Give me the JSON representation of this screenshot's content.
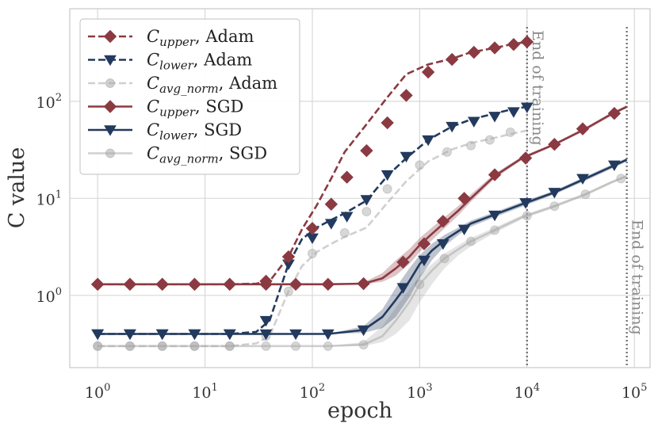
{
  "chart_data": {
    "type": "line",
    "title": "",
    "xlabel": "epoch",
    "ylabel": "C value",
    "xscale": "log",
    "yscale": "log",
    "xlim": [
      0.55,
      140000
    ],
    "ylim": [
      0.18,
      900
    ],
    "x_ticks": [
      1,
      10,
      100,
      1000,
      10000,
      100000
    ],
    "x_tick_labels": [
      {
        "base": "10",
        "exp": "0"
      },
      {
        "base": "10",
        "exp": "1"
      },
      {
        "base": "10",
        "exp": "2"
      },
      {
        "base": "10",
        "exp": "3"
      },
      {
        "base": "10",
        "exp": "4"
      },
      {
        "base": "10",
        "exp": "5"
      }
    ],
    "y_ticks": [
      1,
      10,
      100
    ],
    "y_tick_labels": [
      {
        "base": "10",
        "exp": "0"
      },
      {
        "base": "10",
        "exp": "1"
      },
      {
        "base": "10",
        "exp": "2"
      }
    ],
    "grid": true,
    "legend_position": "top-left",
    "series": [
      {
        "name": "C_upper, Adam",
        "sub": "upper",
        "optimizer": "Adam",
        "color": "#8b3a42",
        "dash": "dashed",
        "marker": "diamond",
        "x": [
          1,
          2,
          4,
          8,
          17,
          30,
          40,
          60,
          80,
          110,
          150,
          200,
          320,
          500,
          750,
          1200,
          2000,
          3000,
          5000,
          7000,
          10000
        ],
        "y": [
          1.3,
          1.3,
          1.3,
          1.3,
          1.3,
          1.32,
          1.4,
          2.5,
          4.8,
          8.5,
          16,
          30,
          58,
          110,
          190,
          240,
          275,
          320,
          355,
          385,
          410
        ],
        "marker_x": [
          1,
          2,
          4,
          8,
          17,
          37,
          60,
          100,
          150,
          210,
          320,
          500,
          750,
          1200,
          2000,
          3200,
          5000,
          7500,
          10000
        ],
        "marker_y": [
          1.3,
          1.3,
          1.3,
          1.3,
          1.3,
          1.4,
          2.5,
          4.9,
          8.7,
          16.5,
          31,
          60,
          115,
          200,
          270,
          320,
          355,
          385,
          410
        ]
      },
      {
        "name": "C_lower, Adam",
        "sub": "lower",
        "optimizer": "Adam",
        "color": "#233a5e",
        "dash": "dashed",
        "marker": "triangle-down",
        "x": [
          1,
          2,
          4,
          8,
          17,
          30,
          40,
          60,
          80,
          110,
          150,
          200,
          320,
          500,
          750,
          1200,
          2000,
          3000,
          5000,
          7000,
          10000
        ],
        "y": [
          0.4,
          0.4,
          0.4,
          0.4,
          0.4,
          0.42,
          0.55,
          2.1,
          3.8,
          5.0,
          6.0,
          7.0,
          9.5,
          17,
          26,
          40,
          55,
          65,
          75,
          82,
          88
        ],
        "marker_x": [
          1,
          2,
          4,
          8,
          17,
          37,
          60,
          100,
          150,
          210,
          320,
          500,
          750,
          1200,
          2000,
          3200,
          5000,
          7500,
          10000
        ],
        "marker_y": [
          0.4,
          0.4,
          0.4,
          0.4,
          0.4,
          0.55,
          2.1,
          3.9,
          5.5,
          6.5,
          9.7,
          17.5,
          27,
          40,
          55,
          62,
          70,
          78,
          87
        ]
      },
      {
        "name": "C_avg_norm, Adam",
        "sub": "avg_norm",
        "optimizer": "Adam",
        "color": "#aaaaaa",
        "dash": "dashed",
        "marker": "circle",
        "x": [
          1,
          2,
          4,
          8,
          17,
          30,
          40,
          60,
          80,
          110,
          150,
          200,
          320,
          500,
          750,
          1200,
          2000,
          3000,
          5000,
          7000,
          10000
        ],
        "y": [
          0.3,
          0.3,
          0.3,
          0.3,
          0.3,
          0.32,
          0.38,
          1.1,
          2.0,
          2.8,
          3.4,
          4.0,
          5.0,
          9.0,
          15,
          24,
          32,
          37,
          42,
          46,
          50
        ],
        "marker_x": [
          1,
          2,
          4,
          8,
          17,
          37,
          60,
          100,
          200,
          320,
          500,
          1000,
          1800,
          3000,
          4500,
          7000
        ],
        "marker_y": [
          0.3,
          0.3,
          0.3,
          0.3,
          0.3,
          0.38,
          1.1,
          2.7,
          4.4,
          7.3,
          12.5,
          22,
          30,
          35,
          40,
          48
        ]
      },
      {
        "name": "C_upper, SGD",
        "sub": "upper",
        "optimizer": "SGD",
        "color": "#8b3a42",
        "dash": "solid",
        "marker": "diamond",
        "x": [
          1,
          2,
          4,
          8,
          17,
          37,
          70,
          140,
          300,
          450,
          600,
          800,
          1000,
          1300,
          1700,
          2300,
          3000,
          5000,
          9000,
          18000,
          35000,
          60000,
          85000
        ],
        "y": [
          1.3,
          1.3,
          1.3,
          1.3,
          1.3,
          1.3,
          1.3,
          1.3,
          1.32,
          1.5,
          1.9,
          2.5,
          3.3,
          4.3,
          5.6,
          7.5,
          10,
          17,
          26,
          36,
          52,
          73,
          88
        ],
        "band_lower": [
          1.3,
          1.3,
          1.3,
          1.3,
          1.3,
          1.3,
          1.3,
          1.3,
          1.3,
          1.38,
          1.6,
          2.1,
          2.8,
          3.7,
          4.9,
          6.7,
          9.2,
          16,
          25,
          35,
          50,
          70,
          85
        ],
        "band_upper": [
          1.3,
          1.3,
          1.3,
          1.3,
          1.3,
          1.3,
          1.3,
          1.3,
          1.36,
          1.7,
          2.3,
          3.0,
          3.9,
          5.0,
          6.4,
          8.4,
          11,
          18,
          27,
          37,
          54,
          76,
          91
        ],
        "marker_x": [
          1,
          2,
          4,
          8,
          17,
          37,
          70,
          140,
          300,
          700,
          1100,
          1650,
          2600,
          5000,
          9700,
          18000,
          33000,
          65000
        ],
        "marker_y": [
          1.3,
          1.3,
          1.3,
          1.3,
          1.3,
          1.3,
          1.3,
          1.3,
          1.32,
          2.2,
          3.4,
          5.8,
          10,
          17.5,
          26,
          36,
          52,
          75
        ]
      },
      {
        "name": "C_lower, SGD",
        "sub": "lower",
        "optimizer": "SGD",
        "color": "#233a5e",
        "dash": "solid",
        "marker": "triangle-down",
        "x": [
          1,
          2,
          4,
          8,
          17,
          37,
          70,
          140,
          300,
          450,
          600,
          800,
          1000,
          1300,
          1700,
          2300,
          3000,
          5000,
          9000,
          18000,
          35000,
          60000,
          85000
        ],
        "y": [
          0.4,
          0.4,
          0.4,
          0.4,
          0.4,
          0.4,
          0.4,
          0.4,
          0.44,
          0.6,
          0.9,
          1.4,
          2.1,
          2.9,
          3.7,
          4.6,
          5.5,
          6.8,
          8.7,
          11.5,
          16,
          21,
          25
        ],
        "band_lower": [
          0.4,
          0.4,
          0.4,
          0.4,
          0.4,
          0.4,
          0.4,
          0.4,
          0.41,
          0.46,
          0.6,
          0.95,
          1.5,
          2.3,
          3.2,
          4.2,
          5.1,
          6.4,
          8.2,
          11,
          15.2,
          20,
          24
        ],
        "band_upper": [
          0.4,
          0.4,
          0.4,
          0.4,
          0.4,
          0.4,
          0.4,
          0.4,
          0.48,
          0.72,
          1.2,
          1.9,
          2.6,
          3.4,
          4.2,
          5.0,
          5.9,
          7.2,
          9.2,
          12,
          16.8,
          22,
          26
        ],
        "marker_x": [
          1,
          2,
          4,
          8,
          17,
          37,
          70,
          140,
          300,
          700,
          1100,
          1650,
          2600,
          5000,
          9700,
          18000,
          33000,
          65000
        ],
        "marker_y": [
          0.4,
          0.4,
          0.4,
          0.4,
          0.4,
          0.4,
          0.4,
          0.4,
          0.44,
          1.2,
          2.3,
          3.4,
          4.8,
          6.7,
          9,
          11.5,
          16,
          22
        ]
      },
      {
        "name": "C_avg_norm, SGD",
        "sub": "avg_norm",
        "optimizer": "SGD",
        "color": "#aaaaaa",
        "dash": "solid",
        "marker": "circle",
        "x": [
          1,
          2,
          4,
          8,
          17,
          37,
          70,
          140,
          300,
          450,
          600,
          800,
          1000,
          1300,
          1700,
          2300,
          3000,
          5000,
          9000,
          18000,
          35000,
          60000,
          85000
        ],
        "y": [
          0.3,
          0.3,
          0.3,
          0.3,
          0.3,
          0.3,
          0.3,
          0.3,
          0.31,
          0.38,
          0.55,
          0.85,
          1.3,
          1.8,
          2.4,
          3.0,
          3.6,
          4.7,
          6.4,
          8.3,
          11,
          14.5,
          17
        ],
        "band_lower": [
          0.3,
          0.3,
          0.3,
          0.3,
          0.3,
          0.3,
          0.3,
          0.3,
          0.3,
          0.33,
          0.4,
          0.55,
          0.85,
          1.3,
          1.9,
          2.6,
          3.2,
          4.4,
          6.1,
          8.0,
          10.6,
          14,
          16.5
        ],
        "band_upper": [
          0.3,
          0.3,
          0.3,
          0.3,
          0.3,
          0.3,
          0.3,
          0.3,
          0.33,
          0.48,
          0.75,
          1.15,
          1.6,
          2.1,
          2.7,
          3.3,
          3.9,
          5.0,
          6.7,
          8.6,
          11.4,
          15,
          17.5
        ],
        "marker_x": [
          1,
          2,
          4,
          8,
          17,
          37,
          70,
          140,
          300,
          1000,
          1700,
          3000,
          5000,
          10000,
          18000,
          35000,
          75000
        ],
        "marker_y": [
          0.3,
          0.3,
          0.3,
          0.3,
          0.3,
          0.3,
          0.3,
          0.3,
          0.31,
          1.3,
          2.4,
          3.6,
          4.7,
          6.6,
          8.3,
          11,
          16
        ]
      }
    ],
    "vlines": [
      {
        "x": 10000,
        "label": "End of training",
        "color": "#777777"
      },
      {
        "x": 85000,
        "label": "End of training",
        "color": "#777777"
      }
    ]
  }
}
